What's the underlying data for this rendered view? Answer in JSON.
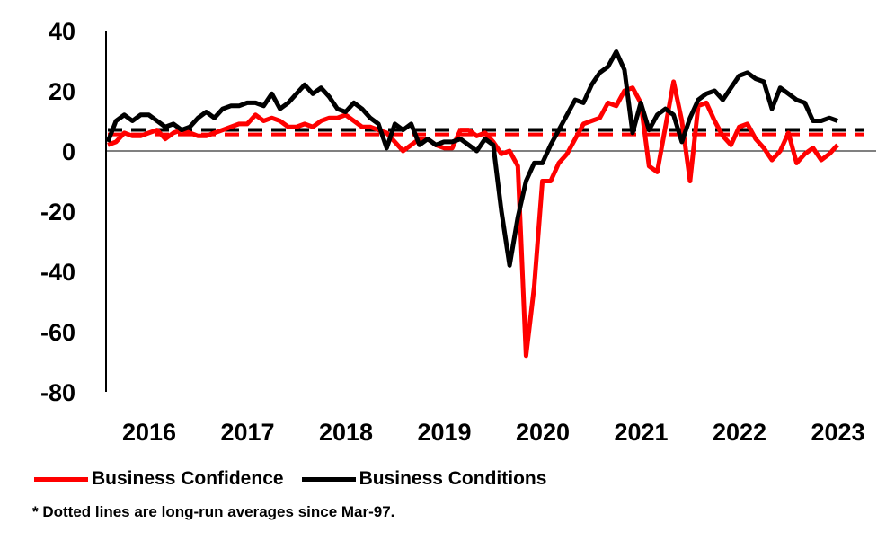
{
  "chart_data": {
    "type": "line",
    "title": "",
    "xlabel": "",
    "ylabel": "",
    "ylim": [
      -80,
      40
    ],
    "yticks": [
      "40",
      "20",
      "0",
      "-20",
      "-40",
      "-60",
      "-80"
    ],
    "xticks": [
      "2016",
      "2017",
      "2018",
      "2019",
      "2020",
      "2021",
      "2022",
      "2023"
    ],
    "x_start": "2016-01",
    "x_end": "2023-07",
    "series": [
      {
        "name": "Business Confidence",
        "color": "#ff0000",
        "average": 5.5,
        "points": [
          [
            "2016-01",
            2
          ],
          [
            "2016-02",
            3
          ],
          [
            "2016-03",
            6
          ],
          [
            "2016-04",
            5
          ],
          [
            "2016-05",
            5
          ],
          [
            "2016-06",
            6
          ],
          [
            "2016-07",
            7
          ],
          [
            "2016-08",
            4
          ],
          [
            "2016-09",
            6
          ],
          [
            "2016-10",
            7
          ],
          [
            "2016-11",
            6
          ],
          [
            "2016-12",
            5
          ],
          [
            "2017-01",
            5
          ],
          [
            "2017-02",
            6
          ],
          [
            "2017-03",
            7
          ],
          [
            "2017-04",
            8
          ],
          [
            "2017-05",
            9
          ],
          [
            "2017-06",
            9
          ],
          [
            "2017-07",
            12
          ],
          [
            "2017-08",
            10
          ],
          [
            "2017-09",
            11
          ],
          [
            "2017-10",
            10
          ],
          [
            "2017-11",
            8
          ],
          [
            "2017-12",
            8
          ],
          [
            "2018-01",
            9
          ],
          [
            "2018-02",
            8
          ],
          [
            "2018-03",
            10
          ],
          [
            "2018-04",
            11
          ],
          [
            "2018-05",
            11
          ],
          [
            "2018-06",
            12
          ],
          [
            "2018-07",
            10
          ],
          [
            "2018-08",
            8
          ],
          [
            "2018-09",
            8
          ],
          [
            "2018-10",
            7
          ],
          [
            "2018-11",
            6
          ],
          [
            "2018-12",
            3
          ],
          [
            "2019-01",
            0
          ],
          [
            "2019-02",
            2
          ],
          [
            "2019-03",
            4
          ],
          [
            "2019-04",
            4
          ],
          [
            "2019-05",
            2
          ],
          [
            "2019-06",
            1
          ],
          [
            "2019-07",
            1
          ],
          [
            "2019-08",
            7
          ],
          [
            "2019-09",
            7
          ],
          [
            "2019-10",
            5
          ],
          [
            "2019-11",
            6
          ],
          [
            "2019-12",
            3
          ],
          [
            "2020-01",
            -1
          ],
          [
            "2020-02",
            0
          ],
          [
            "2020-03",
            -5
          ],
          [
            "2020-04",
            -68
          ],
          [
            "2020-05",
            -45
          ],
          [
            "2020-06",
            -10
          ],
          [
            "2020-07",
            -10
          ],
          [
            "2020-08",
            -4
          ],
          [
            "2020-09",
            -1
          ],
          [
            "2020-10",
            4
          ],
          [
            "2020-11",
            9
          ],
          [
            "2020-12",
            10
          ],
          [
            "2021-01",
            11
          ],
          [
            "2021-02",
            16
          ],
          [
            "2021-03",
            15
          ],
          [
            "2021-04",
            20
          ],
          [
            "2021-05",
            21
          ],
          [
            "2021-06",
            16
          ],
          [
            "2021-07",
            -5
          ],
          [
            "2021-08",
            -7
          ],
          [
            "2021-09",
            8
          ],
          [
            "2021-10",
            23
          ],
          [
            "2021-11",
            10
          ],
          [
            "2021-12",
            -10
          ],
          [
            "2022-01",
            15
          ],
          [
            "2022-02",
            16
          ],
          [
            "2022-03",
            10
          ],
          [
            "2022-04",
            5
          ],
          [
            "2022-05",
            2
          ],
          [
            "2022-06",
            8
          ],
          [
            "2022-07",
            9
          ],
          [
            "2022-08",
            4
          ],
          [
            "2022-09",
            1
          ],
          [
            "2022-10",
            -3
          ],
          [
            "2022-11",
            0
          ],
          [
            "2022-12",
            6
          ],
          [
            "2023-01",
            -4
          ],
          [
            "2023-02",
            -1
          ],
          [
            "2023-03",
            1
          ],
          [
            "2023-04",
            -3
          ],
          [
            "2023-05",
            -1
          ],
          [
            "2023-06",
            2
          ]
        ]
      },
      {
        "name": "Business Conditions",
        "color": "#000000",
        "average": 7,
        "points": [
          [
            "2016-01",
            3
          ],
          [
            "2016-02",
            10
          ],
          [
            "2016-03",
            12
          ],
          [
            "2016-04",
            10
          ],
          [
            "2016-05",
            12
          ],
          [
            "2016-06",
            12
          ],
          [
            "2016-07",
            10
          ],
          [
            "2016-08",
            8
          ],
          [
            "2016-09",
            9
          ],
          [
            "2016-10",
            7
          ],
          [
            "2016-11",
            8
          ],
          [
            "2016-12",
            11
          ],
          [
            "2017-01",
            13
          ],
          [
            "2017-02",
            11
          ],
          [
            "2017-03",
            14
          ],
          [
            "2017-04",
            15
          ],
          [
            "2017-05",
            15
          ],
          [
            "2017-06",
            16
          ],
          [
            "2017-07",
            16
          ],
          [
            "2017-08",
            15
          ],
          [
            "2017-09",
            19
          ],
          [
            "2017-10",
            14
          ],
          [
            "2017-11",
            16
          ],
          [
            "2017-12",
            19
          ],
          [
            "2018-01",
            22
          ],
          [
            "2018-02",
            19
          ],
          [
            "2018-03",
            21
          ],
          [
            "2018-04",
            18
          ],
          [
            "2018-05",
            14
          ],
          [
            "2018-06",
            13
          ],
          [
            "2018-07",
            16
          ],
          [
            "2018-08",
            14
          ],
          [
            "2018-09",
            11
          ],
          [
            "2018-10",
            9
          ],
          [
            "2018-11",
            1
          ],
          [
            "2018-12",
            9
          ],
          [
            "2019-01",
            7
          ],
          [
            "2019-02",
            9
          ],
          [
            "2019-03",
            2
          ],
          [
            "2019-04",
            4
          ],
          [
            "2019-05",
            2
          ],
          [
            "2019-06",
            3
          ],
          [
            "2019-07",
            3
          ],
          [
            "2019-08",
            4
          ],
          [
            "2019-09",
            2
          ],
          [
            "2019-10",
            0
          ],
          [
            "2019-11",
            4
          ],
          [
            "2019-12",
            2
          ],
          [
            "2020-01",
            -20
          ],
          [
            "2020-02",
            -38
          ],
          [
            "2020-03",
            -22
          ],
          [
            "2020-04",
            -10
          ],
          [
            "2020-05",
            -4
          ],
          [
            "2020-06",
            -4
          ],
          [
            "2020-07",
            2
          ],
          [
            "2020-08",
            7
          ],
          [
            "2020-09",
            12
          ],
          [
            "2020-10",
            17
          ],
          [
            "2020-11",
            16
          ],
          [
            "2020-12",
            22
          ],
          [
            "2021-01",
            26
          ],
          [
            "2021-02",
            28
          ],
          [
            "2021-03",
            33
          ],
          [
            "2021-04",
            27
          ],
          [
            "2021-05",
            6
          ],
          [
            "2021-06",
            16
          ],
          [
            "2021-07",
            7
          ],
          [
            "2021-08",
            12
          ],
          [
            "2021-09",
            14
          ],
          [
            "2021-10",
            12
          ],
          [
            "2021-11",
            3
          ],
          [
            "2021-12",
            11
          ],
          [
            "2022-01",
            17
          ],
          [
            "2022-02",
            19
          ],
          [
            "2022-03",
            20
          ],
          [
            "2022-04",
            17
          ],
          [
            "2022-05",
            21
          ],
          [
            "2022-06",
            25
          ],
          [
            "2022-07",
            26
          ],
          [
            "2022-08",
            24
          ],
          [
            "2022-09",
            23
          ],
          [
            "2022-10",
            14
          ],
          [
            "2022-11",
            21
          ],
          [
            "2022-12",
            19
          ],
          [
            "2023-01",
            17
          ],
          [
            "2023-02",
            16
          ],
          [
            "2023-03",
            10
          ],
          [
            "2023-04",
            10
          ],
          [
            "2023-05",
            11
          ],
          [
            "2023-06",
            10
          ]
        ]
      }
    ]
  },
  "legend": {
    "item1": "Business Confidence",
    "item2": "Business Conditions"
  },
  "footnote": "* Dotted lines are long-run averages since Mar-97."
}
